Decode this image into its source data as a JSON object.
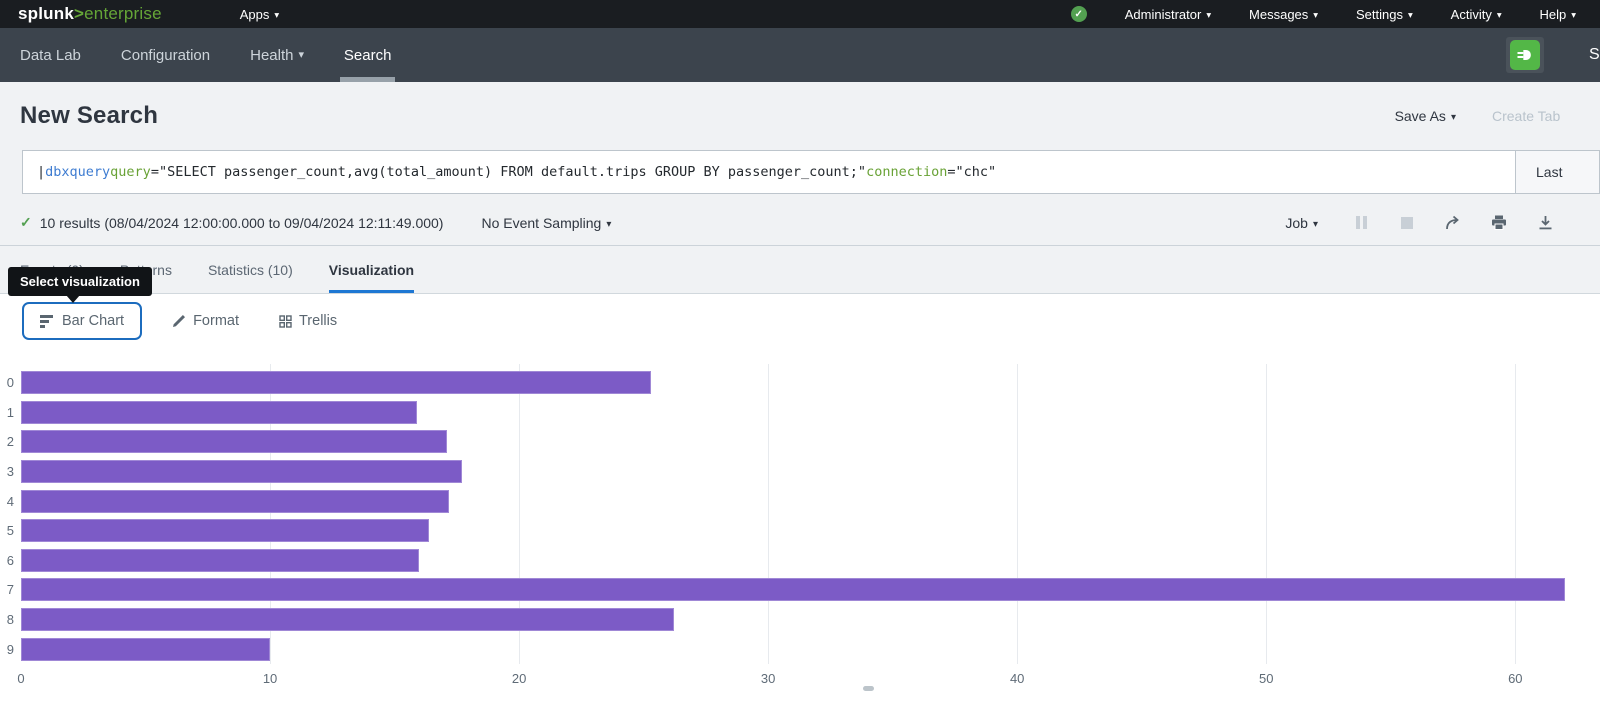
{
  "topbar": {
    "logo_splunk": "splunk",
    "logo_gt": ">",
    "logo_product": "enterprise",
    "apps_label": "Apps",
    "menus": [
      {
        "label": "Administrator"
      },
      {
        "label": "Messages"
      },
      {
        "label": "Settings"
      },
      {
        "label": "Activity"
      },
      {
        "label": "Help"
      }
    ]
  },
  "appbar": {
    "items": [
      {
        "label": "Data Lab"
      },
      {
        "label": "Configuration"
      },
      {
        "label": "Health"
      },
      {
        "label": "Search"
      }
    ],
    "app_badge_text": "S"
  },
  "page_header": {
    "title": "New Search",
    "save_as_label": "Save As",
    "create_table_label": "Create Tab"
  },
  "search": {
    "query_tokens": [
      {
        "text": "| ",
        "style": "plain"
      },
      {
        "text": "dbxquery",
        "style": "command"
      },
      {
        "text": " ",
        "style": "plain"
      },
      {
        "text": "query",
        "style": "param"
      },
      {
        "text": "=\"SELECT passenger_count,avg(total_amount) FROM default.trips GROUP BY passenger_count;\"",
        "style": "plain"
      },
      {
        "text": " ",
        "style": "plain"
      },
      {
        "text": "connection",
        "style": "param"
      },
      {
        "text": "=\"chc\"",
        "style": "plain"
      }
    ],
    "time_range_label": "Last"
  },
  "results_bar": {
    "status_text": "10 results (08/04/2024 12:00:00.000 to 09/04/2024 12:11:49.000)",
    "sampling_label": "No Event Sampling",
    "job_label": "Job"
  },
  "tabs": [
    {
      "label": "Events (0)"
    },
    {
      "label": "Patterns"
    },
    {
      "label": "Statistics (10)"
    },
    {
      "label": "Visualization"
    }
  ],
  "tooltip": {
    "text": "Select visualization"
  },
  "viz_controls": {
    "chart_type_label": "Bar Chart",
    "format_label": "Format",
    "trellis_label": "Trellis"
  },
  "chart_data": {
    "type": "bar",
    "orientation": "horizontal",
    "categories": [
      "0",
      "1",
      "2",
      "3",
      "4",
      "5",
      "6",
      "7",
      "8",
      "9"
    ],
    "values": [
      25.3,
      15.9,
      17.1,
      17.7,
      17.2,
      16.4,
      16.0,
      62.0,
      26.2,
      10.0
    ],
    "x_ticks": [
      0,
      10,
      20,
      30,
      40,
      50,
      60
    ],
    "axis_max": 63.2,
    "title": "",
    "xlabel": "",
    "ylabel": "",
    "legend": "none",
    "grid": true,
    "bar_color": "#7c5bc6"
  },
  "colors": {
    "bar_purple": "#7c5bc6",
    "accent_blue": "#1e77d3",
    "splunk_green": "#65a637",
    "check_green": "#53a051",
    "command_blue": "#3e7cd1",
    "param_green": "#69a236",
    "topbar_bg": "#1a1d21",
    "appbar_bg": "#3c444d"
  }
}
